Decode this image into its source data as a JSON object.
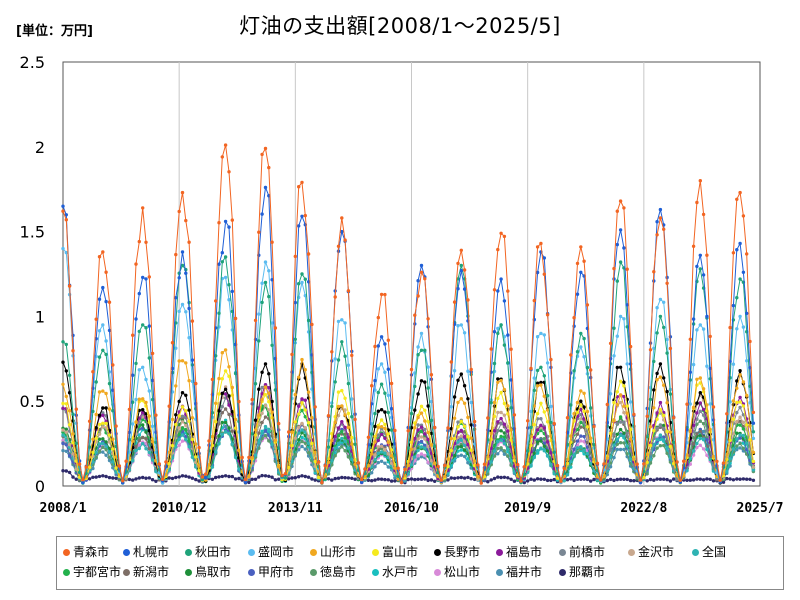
{
  "chart_data": {
    "type": "line",
    "title": "灯油の支出額[2008/1～2025/5]",
    "unit_label": "[単位：万円]",
    "x_range": [
      "2008/1",
      "2025/7"
    ],
    "x_ticks": [
      "2008/1",
      "2010/12",
      "2013/11",
      "2016/10",
      "2019/9",
      "2022/8",
      "2025/7"
    ],
    "ylim": [
      0,
      2.5
    ],
    "y_ticks": [
      "0",
      "0.5",
      "1",
      "1.5",
      "2",
      "2.5"
    ],
    "grid": "vertical",
    "legend_position": "bottom",
    "winter_peaks": [
      {
        "season": "2008/1",
        "values": {
          "青森市": 1.62,
          "札幌市": 1.65,
          "秋田市": 0.85,
          "盛岡市": 1.4,
          "長野市": 0.73,
          "全国": 0.3,
          "那覇市": 0.09
        }
      },
      {
        "season": "2009/1",
        "values": {
          "青森市": 1.38,
          "札幌市": 1.17,
          "秋田市": 0.8,
          "盛岡市": 0.95,
          "長野市": 0.46,
          "全国": 0.25,
          "那覇市": 0.06
        }
      },
      {
        "season": "2010/1",
        "values": {
          "青森市": 1.64,
          "札幌市": 1.23,
          "秋田市": 0.95,
          "盛岡市": 0.7,
          "長野市": 0.45,
          "全国": 0.25,
          "那覇市": 0.05
        }
      },
      {
        "season": "2011/1",
        "values": {
          "青森市": 1.73,
          "札幌市": 1.38,
          "秋田市": 1.3,
          "盛岡市": 1.07,
          "長野市": 0.55,
          "全国": 0.3,
          "那覇市": 0.06
        }
      },
      {
        "season": "2012/2",
        "values": {
          "青森市": 2.01,
          "札幌市": 1.56,
          "秋田市": 1.35,
          "盛岡市": 1.23,
          "長野市": 0.57,
          "全国": 0.32,
          "那覇市": 0.06
        }
      },
      {
        "season": "2013/2",
        "values": {
          "青森市": 1.99,
          "札幌市": 1.76,
          "秋田市": 1.2,
          "盛岡市": 1.32,
          "長野市": 0.72,
          "全国": 0.35,
          "那覇市": 0.06
        }
      },
      {
        "season": "2014/1",
        "values": {
          "青森市": 1.79,
          "札幌市": 1.59,
          "秋田市": 1.25,
          "盛岡市": 1.2,
          "長野市": 0.72,
          "全国": 0.33,
          "那覇市": 0.06
        }
      },
      {
        "season": "2015/1",
        "values": {
          "青森市": 1.58,
          "札幌市": 1.5,
          "秋田市": 0.85,
          "盛岡市": 0.98,
          "長野市": 0.47,
          "全国": 0.28,
          "那覇市": 0.05
        }
      },
      {
        "season": "2016/1",
        "values": {
          "青森市": 1.13,
          "札幌市": 0.88,
          "秋田市": 0.6,
          "盛岡市": 0.72,
          "長野市": 0.45,
          "全国": 0.2,
          "那覇市": 0.04
        }
      },
      {
        "season": "2017/1",
        "values": {
          "青森市": 1.26,
          "札幌市": 1.3,
          "秋田市": 0.8,
          "盛岡市": 0.9,
          "長野市": 0.62,
          "全国": 0.23,
          "那覇市": 0.04
        }
      },
      {
        "season": "2018/1",
        "values": {
          "青森市": 1.39,
          "札幌市": 1.27,
          "秋田市": 1.3,
          "盛岡市": 0.95,
          "長野市": 0.66,
          "全国": 0.27,
          "那覇市": 0.05
        }
      },
      {
        "season": "2019/1",
        "values": {
          "青森市": 1.49,
          "札幌市": 1.22,
          "秋田市": 0.95,
          "盛岡市": 0.95,
          "長野市": 0.63,
          "全国": 0.27,
          "那覇市": 0.05
        }
      },
      {
        "season": "2020/1",
        "values": {
          "青森市": 1.43,
          "札幌市": 1.38,
          "秋田市": 0.7,
          "盛岡市": 0.9,
          "長野市": 0.61,
          "全国": 0.22,
          "那覇市": 0.04
        }
      },
      {
        "season": "2021/1",
        "values": {
          "青森市": 1.41,
          "札幌市": 1.26,
          "秋田市": 0.9,
          "盛岡市": 0.82,
          "長野市": 0.5,
          "全国": 0.23,
          "那覇市": 0.04
        }
      },
      {
        "season": "2022/1",
        "values": {
          "青森市": 1.68,
          "札幌市": 1.51,
          "秋田市": 1.32,
          "盛岡市": 1.0,
          "長野市": 0.7,
          "全国": 0.3,
          "那覇市": 0.04
        }
      },
      {
        "season": "2023/1",
        "values": {
          "青森市": 1.58,
          "札幌市": 1.63,
          "秋田市": 1.0,
          "盛岡市": 1.1,
          "長野市": 0.72,
          "全国": 0.3,
          "那覇市": 0.04
        }
      },
      {
        "season": "2024/1",
        "values": {
          "青森市": 1.8,
          "札幌市": 1.36,
          "秋田市": 1.28,
          "盛岡市": 0.95,
          "長野市": 0.55,
          "全国": 0.28,
          "那覇市": 0.04
        }
      },
      {
        "season": "2025/1",
        "values": {
          "青森市": 1.73,
          "札幌市": 1.43,
          "秋田市": 1.22,
          "盛岡市": 1.0,
          "長野市": 0.68,
          "全国": 0.3,
          "那覇市": 0.04
        }
      }
    ],
    "summer_low": 0.03,
    "series": [
      {
        "name": "青森市",
        "color": "#f26522"
      },
      {
        "name": "札幌市",
        "color": "#1f5fd6"
      },
      {
        "name": "秋田市",
        "color": "#1fa37a"
      },
      {
        "name": "盛岡市",
        "color": "#5bbcf0"
      },
      {
        "name": "山形市",
        "color": "#f0a820"
      },
      {
        "name": "富山市",
        "color": "#f5ea1e"
      },
      {
        "name": "長野市",
        "color": "#000000"
      },
      {
        "name": "福島市",
        "color": "#8b1a9a"
      },
      {
        "name": "前橋市",
        "color": "#7a8794"
      },
      {
        "name": "金沢市",
        "color": "#c8a88e"
      },
      {
        "name": "全国",
        "color": "#2fb3b3"
      },
      {
        "name": "宇都宮市",
        "color": "#22b14c"
      },
      {
        "name": "新潟市",
        "color": "#7d6e66"
      },
      {
        "name": "鳥取市",
        "color": "#1e8f3a"
      },
      {
        "name": "甲府市",
        "color": "#4a60c0"
      },
      {
        "name": "徳島市",
        "color": "#5a9a6a"
      },
      {
        "name": "水戸市",
        "color": "#1abfbf"
      },
      {
        "name": "松山市",
        "color": "#d88ad8"
      },
      {
        "name": "福井市",
        "color": "#4a8fb0"
      },
      {
        "name": "那覇市",
        "color": "#2e2a6a"
      }
    ]
  }
}
